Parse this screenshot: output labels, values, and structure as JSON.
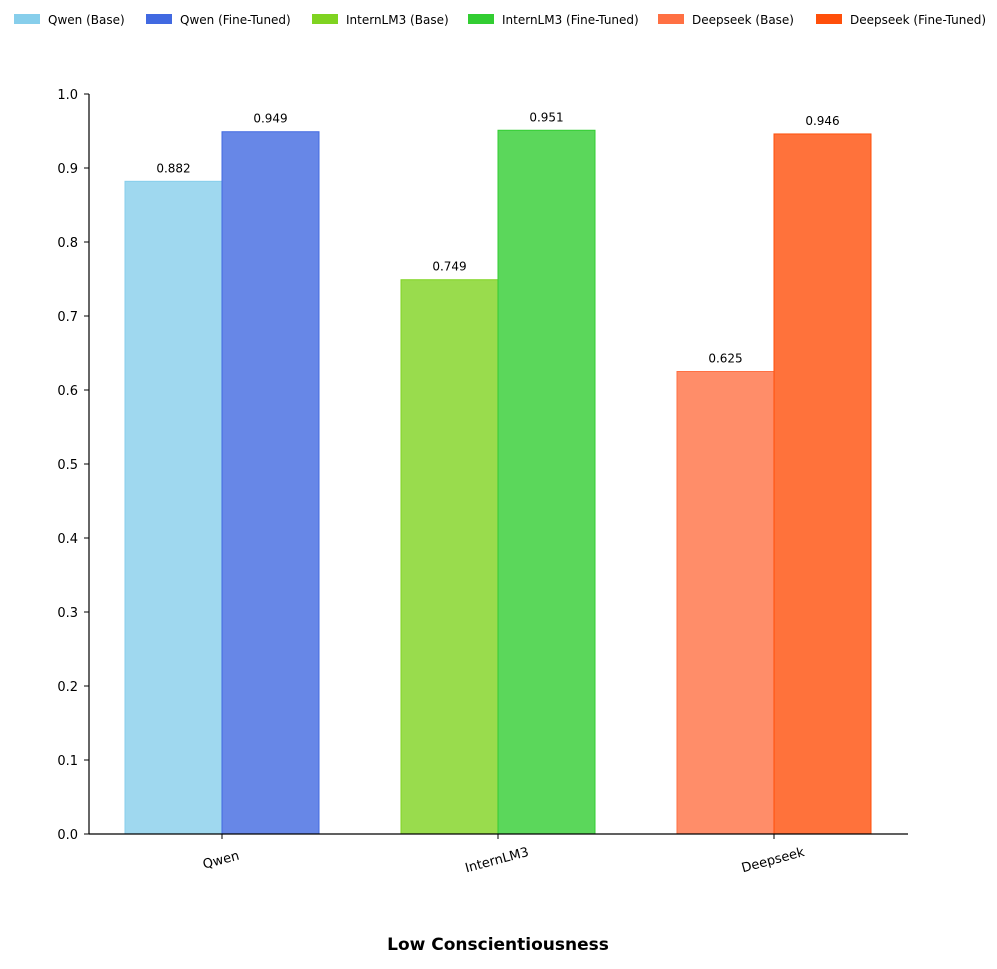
{
  "chart_data": {
    "type": "bar",
    "xlabel": "Low Conscientiousness",
    "ylabel": "",
    "ylim": [
      0,
      1.0
    ],
    "yticks": [
      "0.0",
      "0.1",
      "0.2",
      "0.3",
      "0.4",
      "0.5",
      "0.6",
      "0.7",
      "0.8",
      "0.9",
      "1.0"
    ],
    "grid": false,
    "legend_placement": "top",
    "categories": [
      "Qwen",
      "InternLM3",
      "Deepseek"
    ],
    "series": [
      {
        "name": "Qwen (Base)",
        "category": "Qwen",
        "value": 0.882,
        "label": "0.882",
        "color": "#87CEEB"
      },
      {
        "name": "Qwen (Fine-Tuned)",
        "category": "Qwen",
        "value": 0.949,
        "label": "0.949",
        "color": "#4169E1"
      },
      {
        "name": "InternLM3 (Base)",
        "category": "InternLM3",
        "value": 0.749,
        "label": "0.749",
        "color": "#7FD321"
      },
      {
        "name": "InternLM3 (Fine-Tuned)",
        "category": "InternLM3",
        "value": 0.951,
        "label": "0.951",
        "color": "#32CD32"
      },
      {
        "name": "Deepseek (Base)",
        "category": "Deepseek",
        "value": 0.625,
        "label": "0.625",
        "color": "#FF7043"
      },
      {
        "name": "Deepseek (Fine-Tuned)",
        "category": "Deepseek",
        "value": 0.946,
        "label": "0.946",
        "color": "#FF4F0A"
      }
    ]
  }
}
